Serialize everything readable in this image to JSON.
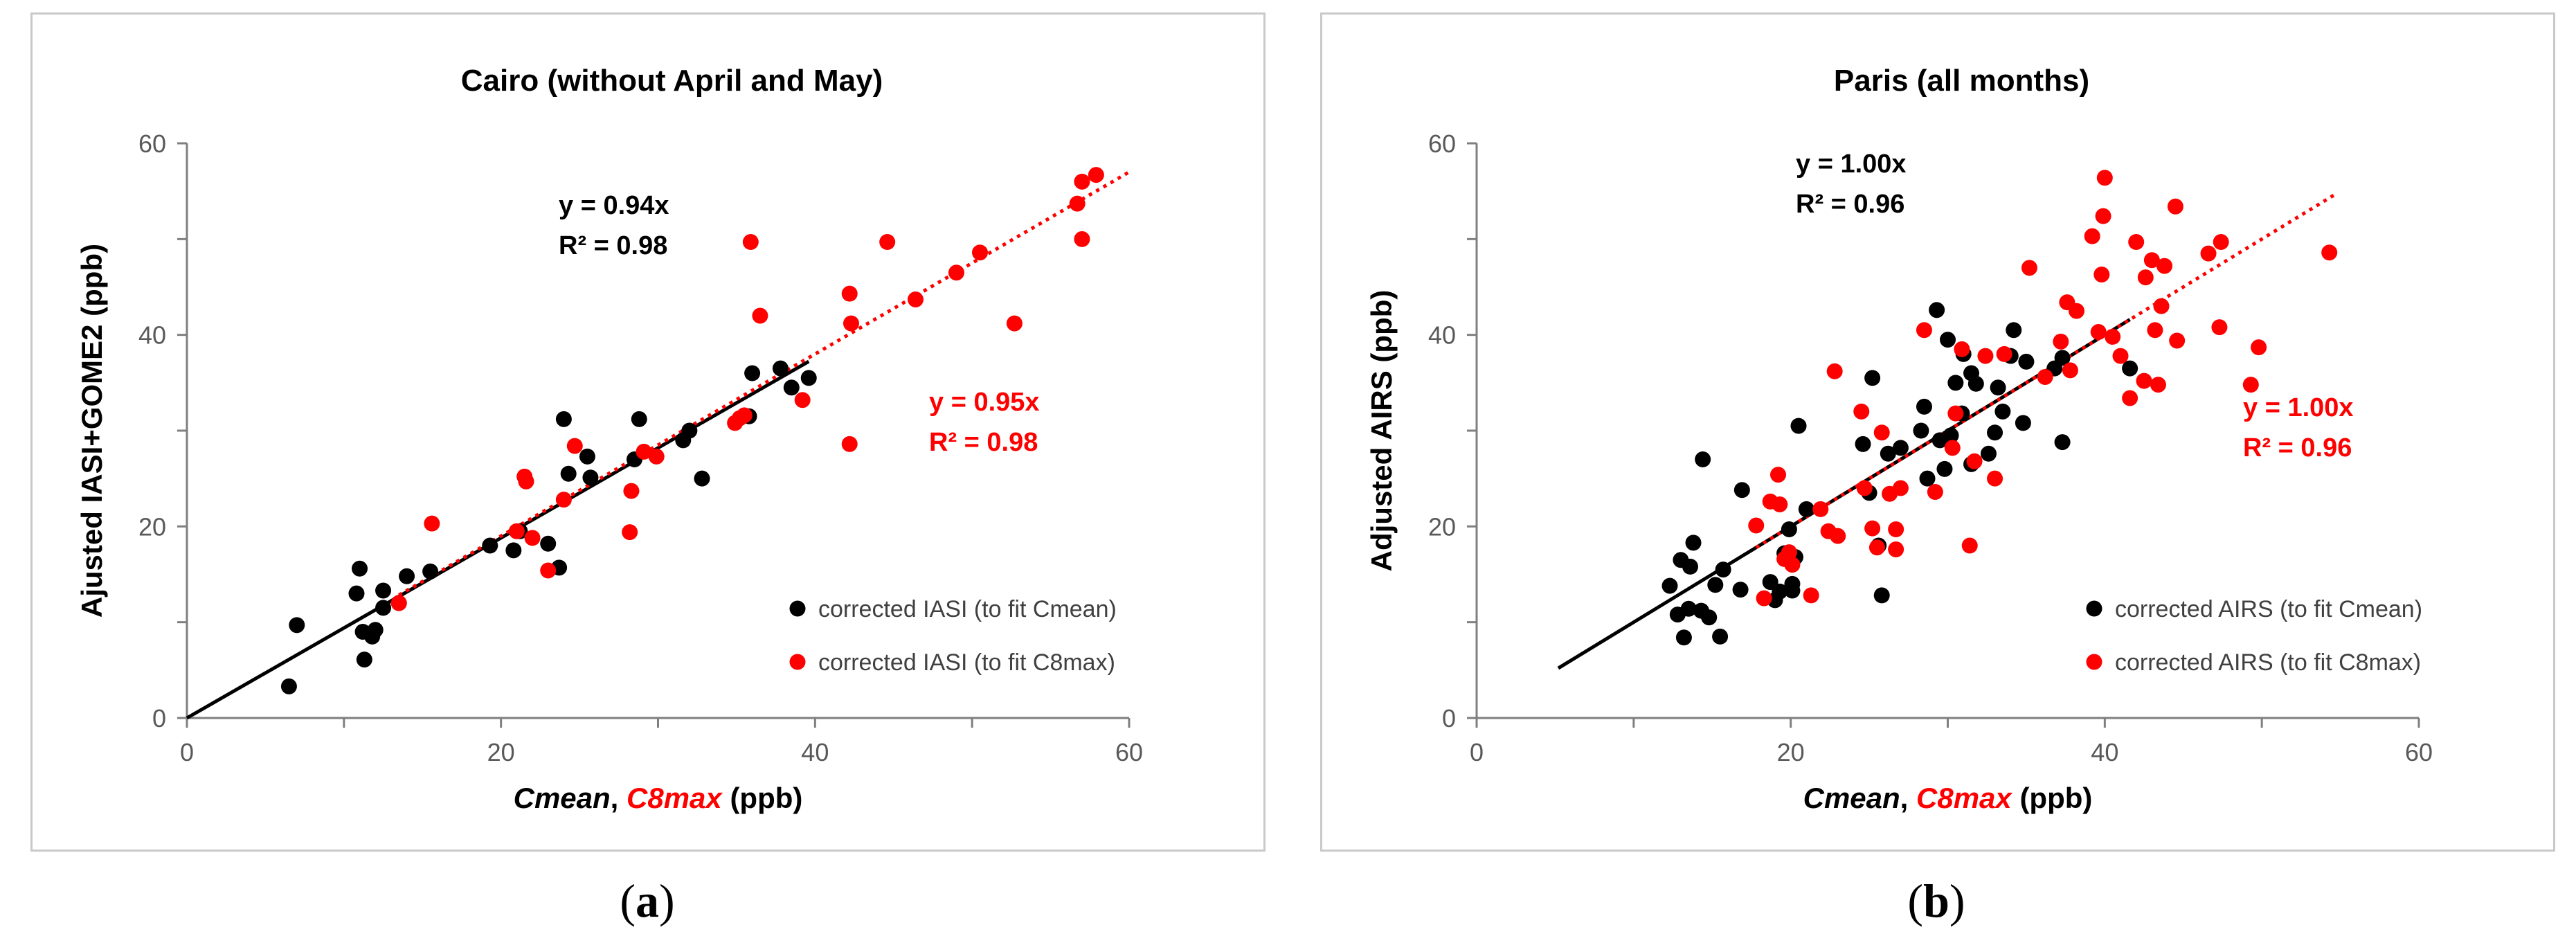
{
  "captions": {
    "a": "(a)",
    "b": "(b)"
  },
  "chart_data": [
    {
      "type": "scatter",
      "title": "Cairo (without April and May)",
      "xlabel_parts": [
        "Cmean",
        ", ",
        "C8max",
        " (ppb)"
      ],
      "ylabel": "Ajusted IASI+GOME2 (ppb)",
      "xlim": [
        0,
        60
      ],
      "ylim": [
        0,
        60
      ],
      "xticks": [
        0,
        20,
        40,
        60
      ],
      "yticks": [
        0,
        20,
        40,
        60
      ],
      "grid": false,
      "legend_position": "bottom-right",
      "series": [
        {
          "name": "corrected IASI (to fit Cmean)",
          "color": "#000000",
          "points": [
            [
              6.5,
              3.3
            ],
            [
              7,
              9.7
            ],
            [
              10.8,
              13
            ],
            [
              11,
              15.6
            ],
            [
              11.2,
              9
            ],
            [
              11.3,
              6.1
            ],
            [
              11.8,
              8.5
            ],
            [
              12,
              9.2
            ],
            [
              12.5,
              13.3
            ],
            [
              12.5,
              11.5
            ],
            [
              13.5,
              12
            ],
            [
              14,
              14.8
            ],
            [
              15.5,
              15.3
            ],
            [
              19.3,
              18
            ],
            [
              20.8,
              17.5
            ],
            [
              21.2,
              19.5
            ],
            [
              23,
              18.2
            ],
            [
              23.7,
              15.7
            ],
            [
              24,
              31.2
            ],
            [
              24.3,
              25.5
            ],
            [
              25.5,
              27.3
            ],
            [
              25.7,
              25.1
            ],
            [
              28.5,
              27
            ],
            [
              28.8,
              31.2
            ],
            [
              31.6,
              29
            ],
            [
              32,
              30
            ],
            [
              32.8,
              25
            ],
            [
              35.8,
              31.5
            ],
            [
              36,
              36
            ],
            [
              37.8,
              36.5
            ],
            [
              38.5,
              34.5
            ],
            [
              39.6,
              35.5
            ]
          ]
        },
        {
          "name": "corrected IASI (to fit C8max)",
          "color": "#ff0000",
          "points": [
            [
              13.5,
              12
            ],
            [
              15.6,
              20.3
            ],
            [
              21,
              19.5
            ],
            [
              21.5,
              25.2
            ],
            [
              21.6,
              24.7
            ],
            [
              22,
              18.8
            ],
            [
              23,
              15.4
            ],
            [
              24,
              22.8
            ],
            [
              24.7,
              28.4
            ],
            [
              28.2,
              19.4
            ],
            [
              28.3,
              23.7
            ],
            [
              29.1,
              27.8
            ],
            [
              29.9,
              27.3
            ],
            [
              34.9,
              30.8
            ],
            [
              35.2,
              31.3
            ],
            [
              35.5,
              31.6
            ],
            [
              35.9,
              49.7
            ],
            [
              36.5,
              42
            ],
            [
              39.2,
              33.2
            ],
            [
              42.2,
              44.3
            ],
            [
              42.3,
              41.2
            ],
            [
              42.2,
              28.6
            ],
            [
              44.6,
              49.7
            ],
            [
              46.4,
              43.7
            ],
            [
              49,
              46.5
            ],
            [
              50.5,
              48.6
            ],
            [
              52.7,
              41.2
            ],
            [
              56.7,
              53.7
            ],
            [
              57,
              56
            ],
            [
              57,
              50
            ],
            [
              57.9,
              56.7
            ]
          ]
        }
      ],
      "fits": [
        {
          "color": "#000000",
          "style": "solid",
          "slope": 0.94,
          "x_range": [
            0,
            39.6
          ],
          "equation": "y = 0.94x",
          "r2": "R² = 0.98"
        },
        {
          "color": "#ff0000",
          "style": "dotted",
          "slope": 0.95,
          "x_range": [
            13.5,
            60
          ],
          "equation": "y = 0.95x",
          "r2": "R² = 0.98"
        }
      ]
    },
    {
      "type": "scatter",
      "title": "Paris (all months)",
      "xlabel_parts": [
        "Cmean",
        ", ",
        "C8max",
        " (ppb)"
      ],
      "ylabel": "Adjusted AIRS (ppb)",
      "xlim": [
        0,
        60
      ],
      "ylim": [
        0,
        60
      ],
      "xticks": [
        0,
        20,
        40,
        60
      ],
      "yticks": [
        0,
        20,
        40,
        60
      ],
      "grid": false,
      "legend_position": "bottom-right",
      "series": [
        {
          "name": "corrected AIRS (to fit Cmean)",
          "color": "#000000",
          "points": [
            [
              12.3,
              13.8
            ],
            [
              12.8,
              10.8
            ],
            [
              13,
              16.5
            ],
            [
              13.2,
              8.4
            ],
            [
              13.5,
              11.4
            ],
            [
              13.6,
              15.8
            ],
            [
              13.8,
              18.3
            ],
            [
              14.3,
              11.2
            ],
            [
              14.4,
              27
            ],
            [
              14.8,
              10.5
            ],
            [
              15.2,
              13.9
            ],
            [
              15.5,
              8.5
            ],
            [
              15.7,
              15.5
            ],
            [
              16.8,
              13.4
            ],
            [
              16.9,
              23.8
            ],
            [
              18.7,
              14.2
            ],
            [
              19,
              12.3
            ],
            [
              19.3,
              13.2
            ],
            [
              19.6,
              17.2
            ],
            [
              19.9,
              19.7
            ],
            [
              20.1,
              13.3
            ],
            [
              20.1,
              14
            ],
            [
              20.3,
              16.8
            ],
            [
              20.5,
              30.5
            ],
            [
              21,
              21.8
            ],
            [
              24.6,
              28.6
            ],
            [
              25,
              23.5
            ],
            [
              25.2,
              35.5
            ],
            [
              25.6,
              18
            ],
            [
              26.2,
              27.6
            ],
            [
              27,
              28.2
            ],
            [
              28.3,
              30
            ],
            [
              28.5,
              32.5
            ],
            [
              28.7,
              25
            ],
            [
              29.3,
              42.6
            ],
            [
              29.5,
              29
            ],
            [
              29.8,
              26
            ],
            [
              30,
              39.5
            ],
            [
              30.2,
              29.5
            ],
            [
              30.5,
              35
            ],
            [
              30.9,
              31.8
            ],
            [
              31,
              38
            ],
            [
              31.5,
              36
            ],
            [
              31.8,
              34.9
            ],
            [
              31.5,
              26.5
            ],
            [
              32.6,
              27.6
            ],
            [
              33,
              29.8
            ],
            [
              33.2,
              34.5
            ],
            [
              33.5,
              32
            ],
            [
              34,
              37.8
            ],
            [
              34.2,
              40.5
            ],
            [
              34.8,
              30.8
            ],
            [
              35,
              37.2
            ],
            [
              36.8,
              36.5
            ],
            [
              37.3,
              37.6
            ],
            [
              37.3,
              28.8
            ],
            [
              41.6,
              36.5
            ],
            [
              25.8,
              12.8
            ]
          ]
        },
        {
          "name": "corrected AIRS (to fit C8max)",
          "color": "#ff0000",
          "points": [
            [
              17.8,
              20.1
            ],
            [
              18.3,
              12.5
            ],
            [
              18.7,
              22.6
            ],
            [
              19.2,
              25.4
            ],
            [
              19.3,
              22.3
            ],
            [
              19.6,
              16.6
            ],
            [
              19.9,
              17.3
            ],
            [
              20.1,
              16
            ],
            [
              21.3,
              12.8
            ],
            [
              21.9,
              21.8
            ],
            [
              22.4,
              19.5
            ],
            [
              22.8,
              36.2
            ],
            [
              23,
              19
            ],
            [
              24.5,
              32
            ],
            [
              24.7,
              24
            ],
            [
              25.2,
              19.8
            ],
            [
              25.5,
              17.8
            ],
            [
              25.8,
              29.8
            ],
            [
              26.3,
              23.4
            ],
            [
              26.7,
              17.6
            ],
            [
              26.7,
              19.7
            ],
            [
              27,
              24
            ],
            [
              28.5,
              40.5
            ],
            [
              29.2,
              23.6
            ],
            [
              30.3,
              28.2
            ],
            [
              30.5,
              31.8
            ],
            [
              30.9,
              38.5
            ],
            [
              31.4,
              18
            ],
            [
              31.7,
              26.8
            ],
            [
              32.4,
              37.8
            ],
            [
              33,
              25
            ],
            [
              33.6,
              38
            ],
            [
              35.2,
              47
            ],
            [
              36.2,
              35.6
            ],
            [
              37.2,
              39.3
            ],
            [
              37.6,
              43.4
            ],
            [
              37.8,
              36.3
            ],
            [
              38.2,
              42.5
            ],
            [
              39.2,
              50.3
            ],
            [
              39.6,
              40.3
            ],
            [
              39.8,
              46.3
            ],
            [
              39.9,
              52.4
            ],
            [
              40,
              56.4
            ],
            [
              40.5,
              39.8
            ],
            [
              41,
              37.8
            ],
            [
              41.6,
              33.4
            ],
            [
              42,
              49.7
            ],
            [
              42.5,
              35.2
            ],
            [
              42.6,
              46
            ],
            [
              43,
              47.8
            ],
            [
              43.2,
              40.5
            ],
            [
              43.4,
              34.8
            ],
            [
              43.6,
              43
            ],
            [
              43.8,
              47.2
            ],
            [
              44.5,
              53.4
            ],
            [
              44.6,
              39.4
            ],
            [
              46.6,
              48.5
            ],
            [
              47.3,
              40.8
            ],
            [
              47.4,
              49.7
            ],
            [
              49.3,
              34.8
            ],
            [
              49.8,
              38.7
            ],
            [
              54.3,
              48.6
            ]
          ]
        }
      ],
      "fits": [
        {
          "color": "#000000",
          "style": "solid",
          "slope": 1.0,
          "x_range": [
            5.2,
            41.6
          ],
          "equation": "y = 1.00x",
          "r2": "R² = 0.96"
        },
        {
          "color": "#ff0000",
          "style": "dotted",
          "slope": 1.0,
          "x_range": [
            17.8,
            54.6
          ],
          "equation": "y = 1.00x",
          "r2": "R² = 0.96"
        }
      ]
    }
  ]
}
